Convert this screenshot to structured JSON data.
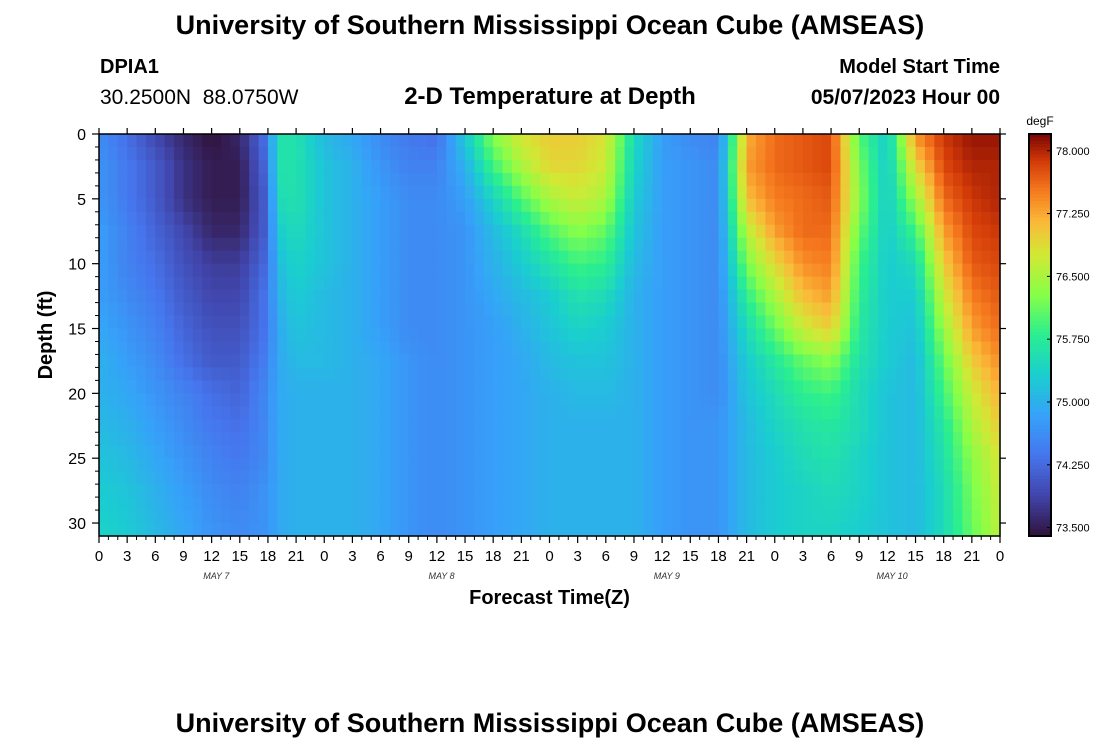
{
  "header": {
    "title": "University of Southern Mississippi Ocean Cube (AMSEAS)",
    "station_id": "DPIA1",
    "coordinates": "30.2500N  88.0750W",
    "subtitle": "2-D Temperature at Depth",
    "model_start_label": "Model Start Time",
    "model_start_value": "05/07/2023 Hour 00"
  },
  "footer": {
    "title": "University of Southern Mississippi Ocean Cube (AMSEAS)"
  },
  "chart_data": {
    "type": "heatmap",
    "title": "2-D Temperature at Depth",
    "xlabel": "Forecast Time(Z)",
    "ylabel": "Depth (ft)",
    "x_tick_labels": [
      "0",
      "3",
      "6",
      "9",
      "12",
      "15",
      "18",
      "21",
      "0",
      "3",
      "6",
      "9",
      "12",
      "15",
      "18",
      "21",
      "0",
      "3",
      "6",
      "9",
      "12",
      "15",
      "18",
      "21",
      "0",
      "3",
      "6",
      "9",
      "12",
      "15",
      "18",
      "21",
      "0"
    ],
    "x_range_hours": [
      0,
      96
    ],
    "day_labels": [
      {
        "label": "MAY 7",
        "center_hour": 12.5
      },
      {
        "label": "MAY 8",
        "center_hour": 36.5
      },
      {
        "label": "MAY 9",
        "center_hour": 60.5
      },
      {
        "label": "MAY 10",
        "center_hour": 84.5
      }
    ],
    "y_ticks": [
      0,
      5,
      10,
      15,
      20,
      25,
      30
    ],
    "y_range_ft": [
      0,
      31
    ],
    "y_inverted": true,
    "colorbar": {
      "unit": "degF",
      "range": [
        73.4,
        78.2
      ],
      "ticks": [
        "78.000",
        "77.250",
        "76.500",
        "75.750",
        "75.000",
        "74.250",
        "73.500"
      ],
      "tick_values": [
        78.0,
        77.25,
        76.5,
        75.75,
        75.0,
        74.25,
        73.5
      ]
    },
    "grid": {
      "depths_ft": [
        0,
        2.5,
        5,
        7.5,
        10,
        12.5,
        15,
        17.5,
        20,
        22.5,
        25,
        27.5,
        31
      ],
      "hours": [
        0,
        3,
        6,
        9,
        12,
        15,
        18,
        19,
        21,
        24,
        27,
        30,
        33,
        36,
        39,
        42,
        45,
        48,
        51,
        54,
        57,
        60,
        63,
        66,
        69,
        72,
        75,
        78,
        81,
        84,
        87,
        90,
        93,
        96
      ],
      "temperatures_degF": [
        [
          74.6,
          74.3,
          73.9,
          73.6,
          73.4,
          73.6,
          74.4,
          75.6,
          75.6,
          75.1,
          74.9,
          74.6,
          74.4,
          74.3,
          75.3,
          76.3,
          76.8,
          77.0,
          77.0,
          76.8,
          75.5,
          74.8,
          74.6,
          74.5,
          77.2,
          77.6,
          77.7,
          77.8,
          76.0,
          75.3,
          77.4,
          77.9,
          78.1,
          78.1
        ],
        [
          74.7,
          74.4,
          74.1,
          73.7,
          73.5,
          73.5,
          74.3,
          75.6,
          75.6,
          75.2,
          75.0,
          74.7,
          74.5,
          74.5,
          75.0,
          75.9,
          76.5,
          76.9,
          76.9,
          76.7,
          75.4,
          74.8,
          74.7,
          74.6,
          77.3,
          77.6,
          77.7,
          77.8,
          76.2,
          75.3,
          76.9,
          77.8,
          78.0,
          78.0
        ],
        [
          74.7,
          74.4,
          74.1,
          73.7,
          73.5,
          73.5,
          74.2,
          75.5,
          75.6,
          75.2,
          75.0,
          74.8,
          74.6,
          74.6,
          74.8,
          75.4,
          76.0,
          76.5,
          76.7,
          76.5,
          75.3,
          74.8,
          74.7,
          74.6,
          77.1,
          77.5,
          77.6,
          77.7,
          76.3,
          75.3,
          76.4,
          77.6,
          77.9,
          78.0
        ],
        [
          74.8,
          74.5,
          74.2,
          73.9,
          73.6,
          73.6,
          74.2,
          75.3,
          75.5,
          75.2,
          75.0,
          74.8,
          74.6,
          74.6,
          74.7,
          75.1,
          75.5,
          76.0,
          76.3,
          76.1,
          75.2,
          74.8,
          74.7,
          74.6,
          76.6,
          77.3,
          77.6,
          77.6,
          76.1,
          75.3,
          75.9,
          77.3,
          77.8,
          77.9
        ],
        [
          74.8,
          74.5,
          74.3,
          74.0,
          73.8,
          73.8,
          74.3,
          75.1,
          75.4,
          75.2,
          75.0,
          74.8,
          74.6,
          74.6,
          74.7,
          75.0,
          75.3,
          75.6,
          75.9,
          75.8,
          75.1,
          74.8,
          74.7,
          74.6,
          76.2,
          76.9,
          77.4,
          77.5,
          75.9,
          75.3,
          75.5,
          77.0,
          77.7,
          77.8
        ],
        [
          74.8,
          74.6,
          74.4,
          74.1,
          73.9,
          73.9,
          74.4,
          75.0,
          75.3,
          75.1,
          75.0,
          74.8,
          74.6,
          74.6,
          74.7,
          74.9,
          75.1,
          75.3,
          75.6,
          75.5,
          75.0,
          74.8,
          74.7,
          74.6,
          75.8,
          76.5,
          77.1,
          77.3,
          75.8,
          75.3,
          75.3,
          76.7,
          77.5,
          77.7
        ],
        [
          74.9,
          74.7,
          74.5,
          74.2,
          74.0,
          74.0,
          74.4,
          74.9,
          75.2,
          75.1,
          75.0,
          74.8,
          74.6,
          74.6,
          74.7,
          74.8,
          75.0,
          75.2,
          75.4,
          75.3,
          75.0,
          74.8,
          74.7,
          74.6,
          75.5,
          76.1,
          76.7,
          77.0,
          75.7,
          75.3,
          75.2,
          76.4,
          77.3,
          77.6
        ],
        [
          75.0,
          74.8,
          74.6,
          74.3,
          74.1,
          74.1,
          74.5,
          74.9,
          75.1,
          75.1,
          75.0,
          74.9,
          74.7,
          74.6,
          74.7,
          74.8,
          74.9,
          75.1,
          75.2,
          75.2,
          75.0,
          74.8,
          74.7,
          74.6,
          75.3,
          75.7,
          76.1,
          76.3,
          75.6,
          75.3,
          75.1,
          76.1,
          77.0,
          77.4
        ],
        [
          75.0,
          74.9,
          74.7,
          74.5,
          74.3,
          74.2,
          74.6,
          74.9,
          75.0,
          75.0,
          75.0,
          74.9,
          74.7,
          74.6,
          74.7,
          74.8,
          74.9,
          75.0,
          75.1,
          75.1,
          75.0,
          74.8,
          74.7,
          74.6,
          75.2,
          75.5,
          75.8,
          75.9,
          75.5,
          75.2,
          75.1,
          75.9,
          76.7,
          77.2
        ],
        [
          75.1,
          75.0,
          74.8,
          74.6,
          74.4,
          74.3,
          74.6,
          74.9,
          75.0,
          75.0,
          75.0,
          74.9,
          74.7,
          74.6,
          74.7,
          74.8,
          74.9,
          75.0,
          75.0,
          75.0,
          75.0,
          74.8,
          74.7,
          74.7,
          75.1,
          75.4,
          75.6,
          75.7,
          75.5,
          75.2,
          75.1,
          75.7,
          76.5,
          77.0
        ],
        [
          75.2,
          75.1,
          74.9,
          74.7,
          74.5,
          74.4,
          74.6,
          74.9,
          75.0,
          75.0,
          75.0,
          74.9,
          74.7,
          74.6,
          74.7,
          74.8,
          74.9,
          75.0,
          75.0,
          75.0,
          75.0,
          74.8,
          74.7,
          74.7,
          75.1,
          75.3,
          75.5,
          75.6,
          75.4,
          75.2,
          75.1,
          75.6,
          76.3,
          76.8
        ],
        [
          75.3,
          75.2,
          75.0,
          74.8,
          74.6,
          74.5,
          74.7,
          74.9,
          75.0,
          75.0,
          75.0,
          74.9,
          74.7,
          74.6,
          74.7,
          74.8,
          74.9,
          75.0,
          75.0,
          75.0,
          75.0,
          74.8,
          74.7,
          74.7,
          75.1,
          75.3,
          75.4,
          75.5,
          75.4,
          75.2,
          75.1,
          75.5,
          76.2,
          76.7
        ],
        [
          75.4,
          75.3,
          75.1,
          74.9,
          74.7,
          74.6,
          74.7,
          74.9,
          75.0,
          75.0,
          75.0,
          74.9,
          74.7,
          74.6,
          74.7,
          74.8,
          74.9,
          75.0,
          75.0,
          75.0,
          75.0,
          74.8,
          74.7,
          74.7,
          75.1,
          75.3,
          75.4,
          75.4,
          75.3,
          75.2,
          75.1,
          75.5,
          76.1,
          76.6
        ]
      ]
    }
  }
}
